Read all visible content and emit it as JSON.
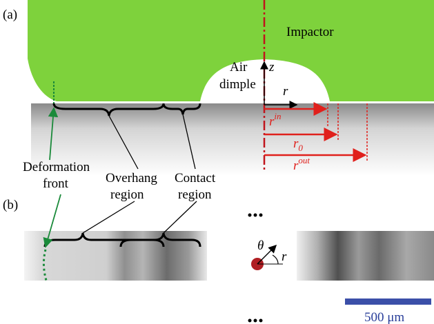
{
  "panel_a": {
    "label": "(a)",
    "impactor": "Impactor",
    "air_dimple": [
      "Air",
      "dimple"
    ],
    "axis_z": "z",
    "axis_r": "r",
    "r_in": {
      "base": "r",
      "sup": "in"
    },
    "r_0": {
      "base": "r",
      "sub": "0"
    },
    "r_out": {
      "base": "r",
      "sup": "out"
    },
    "deformation_front": [
      "Deformation",
      "front"
    ],
    "overhang_region": [
      "Overhang",
      "region"
    ],
    "contact_region": [
      "Contact",
      "region"
    ]
  },
  "panel_b": {
    "label": "(b)",
    "theta": "θ",
    "axis_r": "r",
    "scale_bar": "500 μm"
  }
}
